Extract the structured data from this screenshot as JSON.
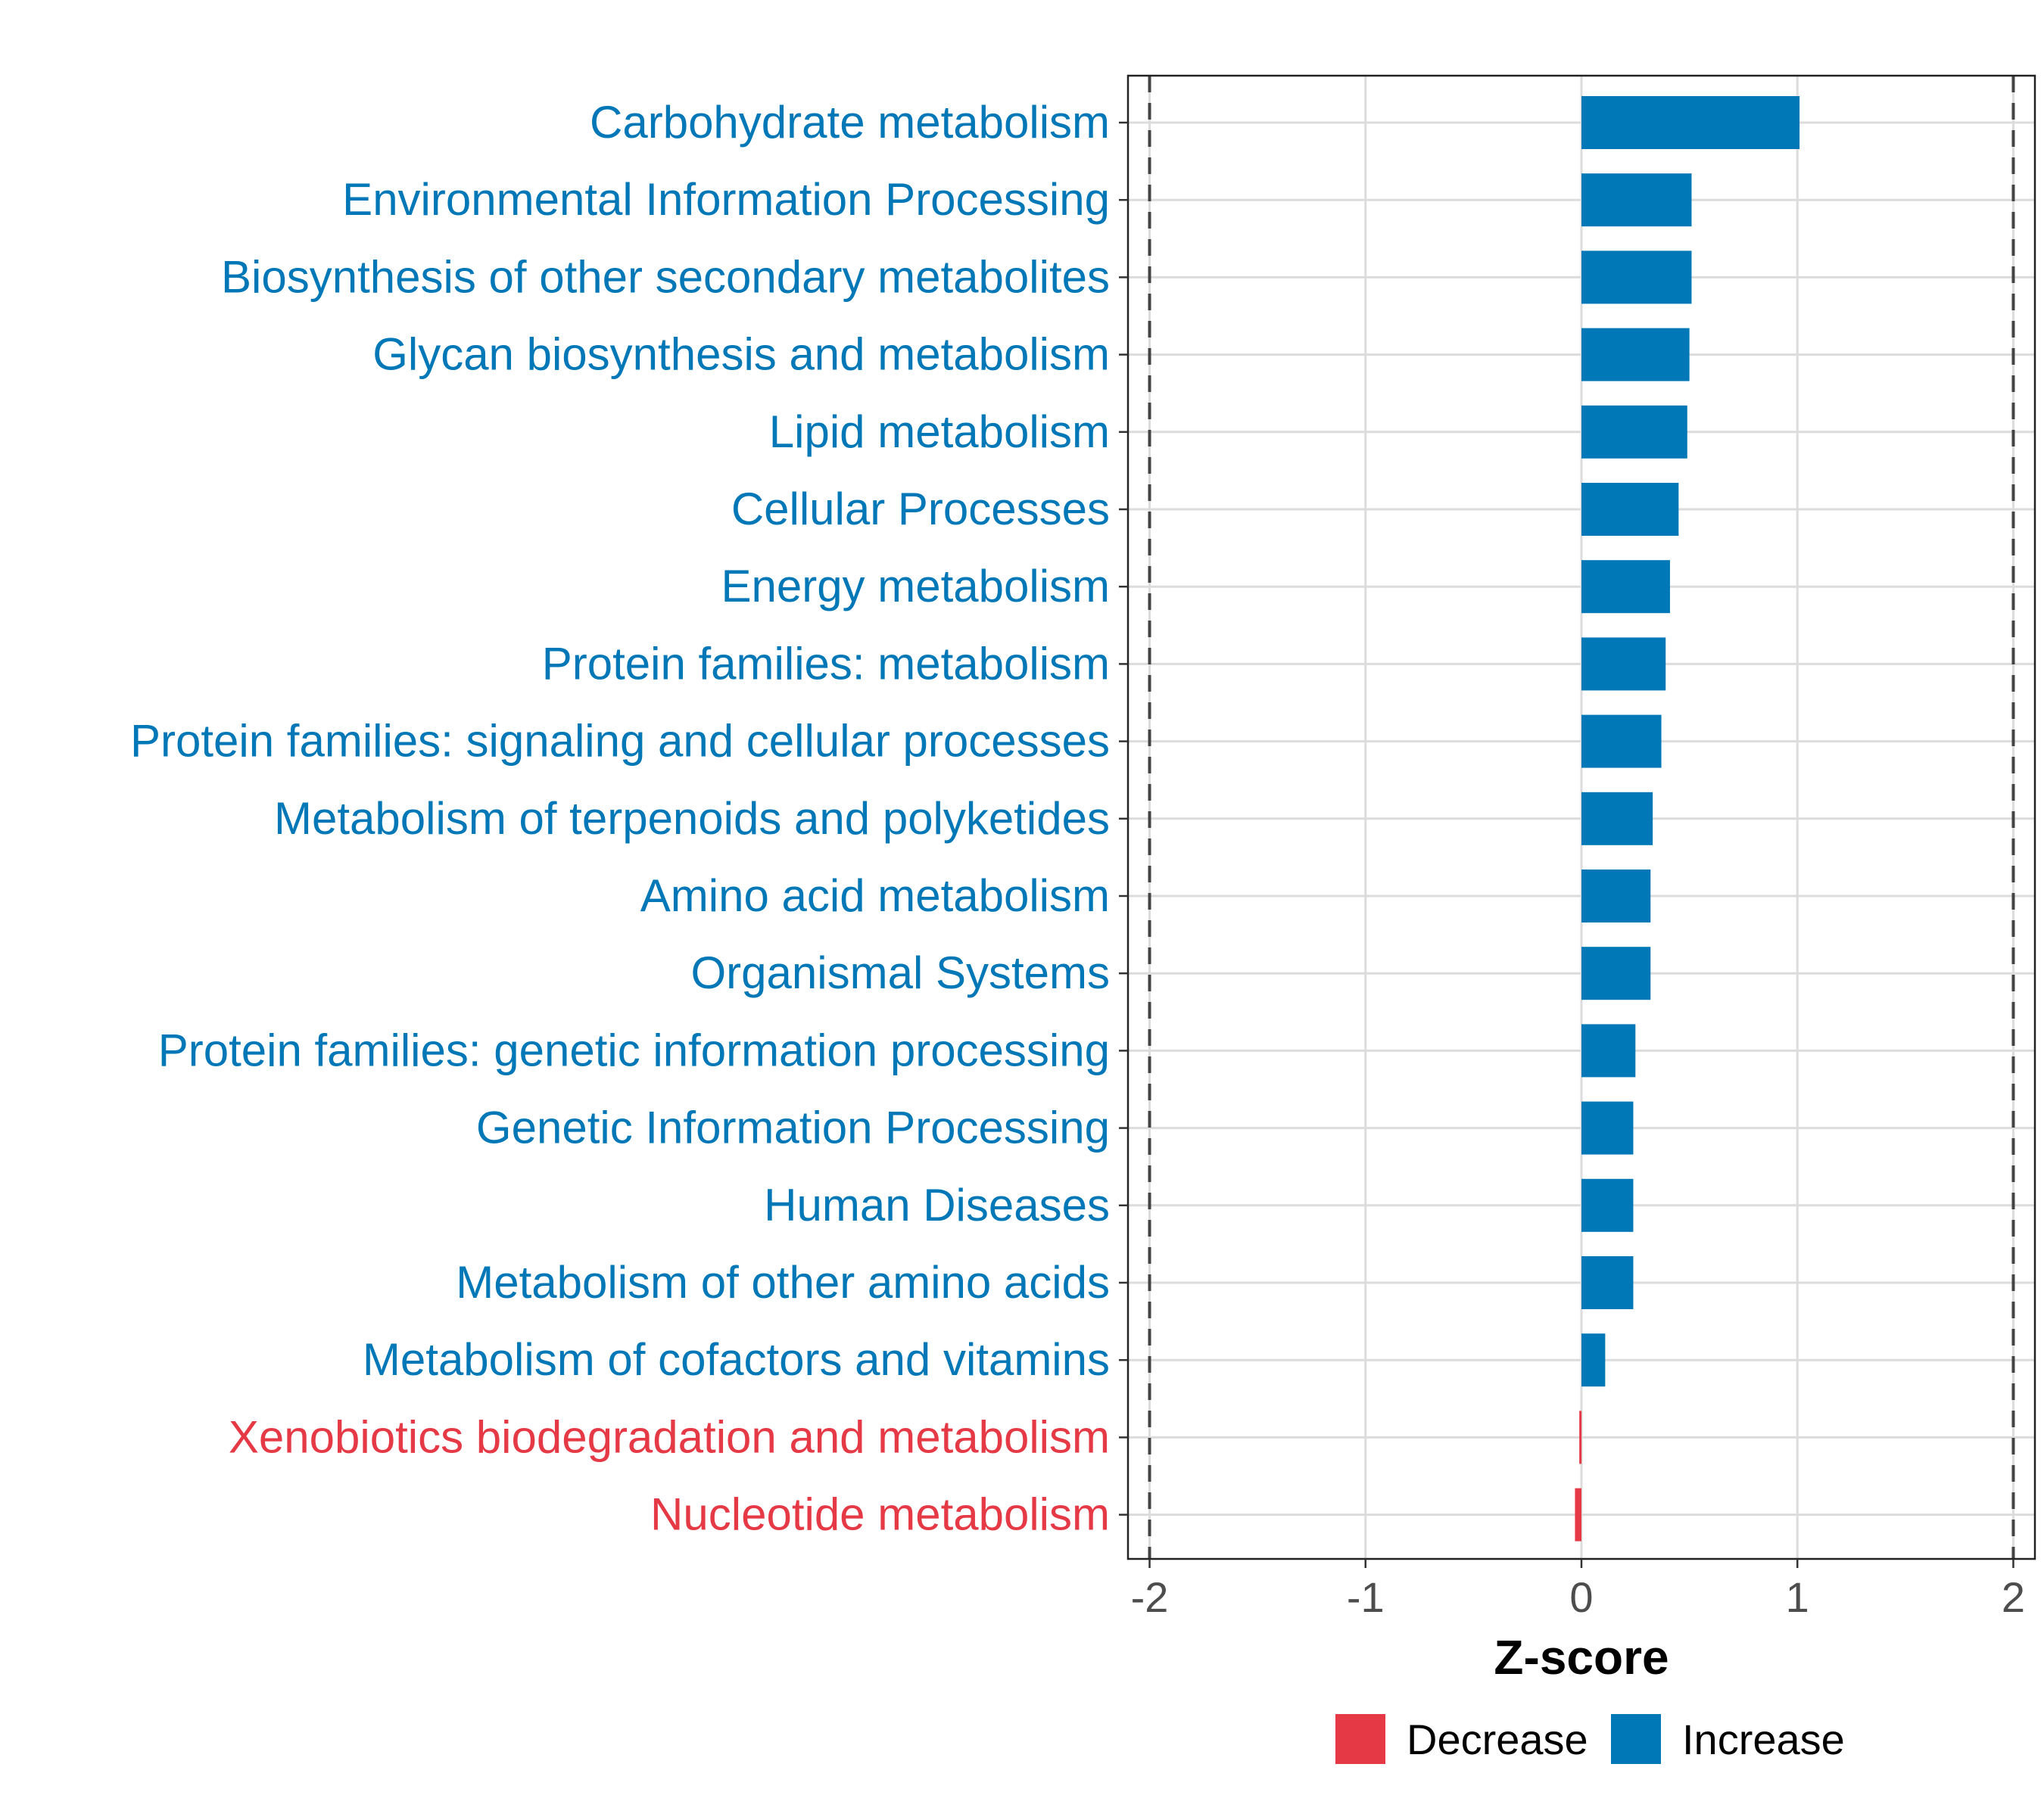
{
  "chart_data": {
    "type": "bar",
    "orientation": "horizontal",
    "categories": [
      "Carbohydrate metabolism",
      "Environmental Information Processing",
      "Biosynthesis of other secondary metabolites",
      "Glycan biosynthesis and metabolism",
      "Lipid metabolism",
      "Cellular Processes",
      "Energy metabolism",
      "Protein families: metabolism",
      "Protein families: signaling and cellular processes",
      "Metabolism of terpenoids and polyketides",
      "Amino acid metabolism",
      "Organismal Systems",
      "Protein families: genetic information processing",
      "Genetic Information Processing",
      "Human Diseases",
      "Metabolism of other amino acids",
      "Metabolism of cofactors and vitamins",
      "Xenobiotics biodegradation and metabolism",
      "Nucleotide metabolism"
    ],
    "values": [
      1.01,
      0.51,
      0.51,
      0.5,
      0.49,
      0.45,
      0.41,
      0.39,
      0.37,
      0.33,
      0.32,
      0.32,
      0.25,
      0.24,
      0.24,
      0.24,
      0.11,
      -0.01,
      -0.03
    ],
    "xlabel": "Z-score",
    "ylabel": "",
    "xlim": [
      -2.1,
      2.1
    ],
    "xticks": [
      -2,
      -1,
      0,
      1,
      2
    ],
    "reference_lines": [
      -2,
      2
    ],
    "grid": true,
    "legend": {
      "position": "bottom",
      "entries": [
        {
          "label": "Decrease",
          "color": "#e63946"
        },
        {
          "label": "Increase",
          "color": "#0077b6"
        }
      ]
    },
    "colors": {
      "increase": "#0077b6",
      "decrease": "#e63946",
      "grid": "#dcdcdc",
      "axis_text": "#4d4d4d",
      "reference_line": "#444444"
    }
  }
}
